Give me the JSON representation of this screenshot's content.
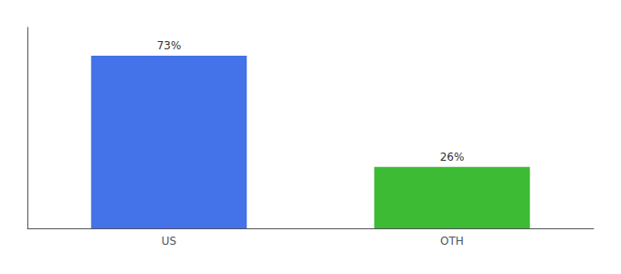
{
  "chart_data": {
    "type": "bar",
    "categories": [
      "US",
      "OTH"
    ],
    "values": [
      73,
      26
    ],
    "value_labels": [
      "73%",
      "26%"
    ],
    "colors": [
      "#4472e8",
      "#3dbb35"
    ],
    "ylim": [
      0,
      85
    ],
    "data_labels": true,
    "tick_labels": "x",
    "grid": false
  }
}
